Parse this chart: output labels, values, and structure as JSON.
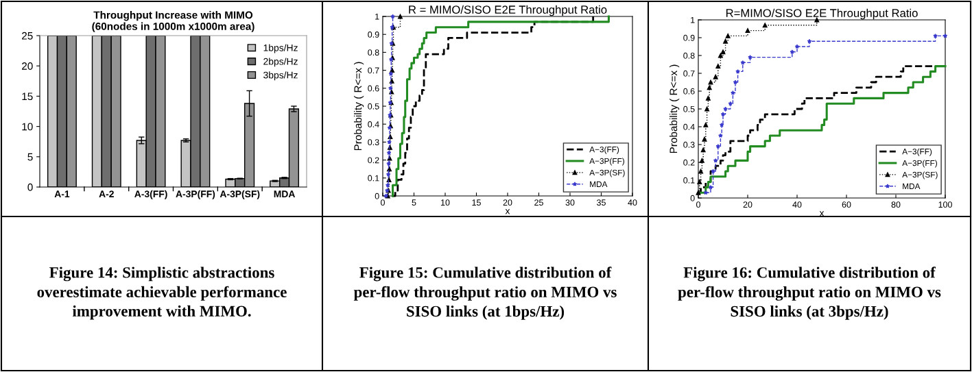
{
  "chart_data": [
    {
      "type": "bar",
      "title": "Throughput Increase with MIMO",
      "subtitle": "(60nodes in 1000m x1000m area)",
      "categories": [
        "A-1",
        "A-2",
        "A-3(FF)",
        "A-3P(FF)",
        "A-3P(SF)",
        "MDA"
      ],
      "series": [
        {
          "name": "1bps/Hz",
          "color": "#c4c4c4",
          "values": [
            25,
            25,
            7.7,
            7.7,
            1.3,
            1.0
          ],
          "errors": [
            null,
            null,
            0.55,
            0.25,
            0.1,
            0.1
          ]
        },
        {
          "name": "2bps/Hz",
          "color": "#6e6e6e",
          "values": [
            25,
            25,
            25,
            25,
            1.4,
            1.5
          ],
          "errors": [
            null,
            null,
            null,
            null,
            0.05,
            0.1
          ]
        },
        {
          "name": "3bps/Hz",
          "color": "#939393",
          "values": [
            25,
            25,
            25,
            25,
            13.8,
            12.9
          ],
          "errors": [
            null,
            null,
            null,
            null,
            2.1,
            0.45
          ]
        }
      ],
      "ylim": [
        0,
        25
      ],
      "yticks": [
        0,
        5,
        10,
        15,
        20,
        25
      ],
      "legend": "top right",
      "grid": false,
      "annotations": [
        "Figure 14: Simplistic abstractions overestimate achievable performance improvement with MIMO."
      ]
    },
    {
      "type": "step",
      "title": "R = MIMO/SISO E2E Throughput Ratio",
      "xlabel": "x",
      "ylabel": "Probability ( R<=x )",
      "series": [
        {
          "name": "A−3(FF)",
          "color": "#000000",
          "line_style": "dashed",
          "marker": "none",
          "x": [
            1.5,
            2.0,
            2.4,
            3.0,
            3.3,
            3.6,
            3.9,
            4.2,
            4.5,
            4.8,
            5.3,
            5.9,
            6.3,
            6.6,
            6.9,
            9.8,
            10.5,
            13.5,
            23.8,
            24.3,
            33.7
          ],
          "values": [
            0,
            0.03,
            0.09,
            0.12,
            0.18,
            0.24,
            0.32,
            0.38,
            0.44,
            0.5,
            0.53,
            0.56,
            0.59,
            0.71,
            0.79,
            0.82,
            0.88,
            0.91,
            0.94,
            0.97,
            1.0
          ]
        },
        {
          "name": "A−3P(FF)",
          "color": "#228b22",
          "line_style": "solid",
          "marker": "none",
          "x": [
            1.6,
            1.6,
            2.2,
            2.5,
            2.8,
            3.1,
            3.4,
            3.6,
            3.9,
            4.3,
            4.6,
            5.0,
            5.6,
            5.9,
            6.3,
            6.6,
            7.0,
            8.5,
            13.7,
            36.2
          ],
          "values": [
            0,
            0.06,
            0.15,
            0.21,
            0.29,
            0.35,
            0.44,
            0.53,
            0.65,
            0.71,
            0.74,
            0.77,
            0.79,
            0.82,
            0.85,
            0.88,
            0.91,
            0.94,
            0.97,
            1.0
          ]
        },
        {
          "name": "A−3P(SF)",
          "color": "#000000",
          "line_style": "dotted",
          "marker": "triangle",
          "x": [
            0.8,
            0.9,
            1.0,
            1.05,
            1.1,
            1.15,
            1.2,
            1.25,
            1.3,
            1.35,
            1.4,
            1.45,
            1.5,
            1.55,
            1.6,
            1.7,
            2.8
          ],
          "values": [
            0,
            0.03,
            0.09,
            0.15,
            0.21,
            0.27,
            0.33,
            0.39,
            0.45,
            0.52,
            0.58,
            0.64,
            0.7,
            0.77,
            0.85,
            0.94,
            1.0
          ]
        },
        {
          "name": "MDA",
          "color": "#3a3acc",
          "line_style": "dashed",
          "marker": "star",
          "x": [
            0.5,
            0.7,
            0.8,
            0.9,
            0.95,
            1.0,
            1.05,
            1.1,
            1.15,
            1.2,
            1.25,
            1.3,
            1.35,
            1.4,
            1.5,
            1.6
          ],
          "values": [
            0,
            0.03,
            0.06,
            0.12,
            0.18,
            0.24,
            0.3,
            0.38,
            0.45,
            0.52,
            0.6,
            0.68,
            0.76,
            0.85,
            0.94,
            1.0
          ]
        }
      ],
      "xlim": [
        0,
        40
      ],
      "xticks": [
        0,
        5,
        10,
        15,
        20,
        25,
        30,
        35,
        40
      ],
      "ylim": [
        0,
        1
      ],
      "yticks": [
        0,
        0.1,
        0.2,
        0.3,
        0.4,
        0.5,
        0.6,
        0.7,
        0.8,
        0.9,
        1
      ],
      "legend": "bottom right",
      "grid": false,
      "annotations": [
        "Figure 15: Cumulative distribution of per-flow throughput ratio on MIMO vs SISO links (at 1bps/Hz)"
      ]
    },
    {
      "type": "step",
      "title": "R=MIMO/SISO E2E Throughput Ratio",
      "xlabel": "x",
      "ylabel": "Probability ( R<=x )",
      "series": [
        {
          "name": "A−3(FF)",
          "color": "#000000",
          "line_style": "dashed",
          "marker": "none",
          "x": [
            0,
            1,
            3,
            5,
            7,
            9,
            10,
            11,
            13,
            20,
            21,
            24,
            25,
            27,
            39,
            42,
            43,
            55,
            64,
            70,
            72,
            82,
            83,
            100
          ],
          "values": [
            0.03,
            0.06,
            0.09,
            0.15,
            0.18,
            0.21,
            0.24,
            0.26,
            0.32,
            0.35,
            0.38,
            0.41,
            0.44,
            0.47,
            0.5,
            0.53,
            0.56,
            0.59,
            0.62,
            0.65,
            0.68,
            0.71,
            0.74,
            0.74
          ]
        },
        {
          "name": "A−3P(FF)",
          "color": "#228b22",
          "line_style": "solid",
          "marker": "none",
          "x": [
            1,
            3,
            4,
            5,
            11,
            12,
            15,
            20,
            21,
            27,
            29,
            33,
            50,
            51,
            52,
            63,
            75,
            85,
            87,
            91,
            94,
            96,
            100
          ],
          "values": [
            0.03,
            0.06,
            0.09,
            0.12,
            0.15,
            0.18,
            0.21,
            0.26,
            0.29,
            0.32,
            0.35,
            0.38,
            0.41,
            0.44,
            0.53,
            0.56,
            0.59,
            0.62,
            0.65,
            0.68,
            0.71,
            0.74,
            0.74
          ]
        },
        {
          "name": "A−3P(SF)",
          "color": "#000000",
          "line_style": "dotted",
          "marker": "triangle",
          "x": [
            0,
            0.5,
            1,
            1.5,
            2,
            2.5,
            3,
            3.5,
            4,
            4.5,
            5,
            7,
            8,
            9,
            10,
            11,
            12,
            20,
            27,
            48
          ],
          "values": [
            0.03,
            0.09,
            0.15,
            0.21,
            0.27,
            0.33,
            0.41,
            0.5,
            0.56,
            0.62,
            0.65,
            0.68,
            0.74,
            0.8,
            0.82,
            0.88,
            0.91,
            0.94,
            0.97,
            1.0
          ]
        },
        {
          "name": "MDA",
          "color": "#3a3acc",
          "line_style": "dashed",
          "marker": "star",
          "x": [
            3,
            5,
            6,
            7,
            8,
            9,
            9.5,
            10,
            11,
            13,
            14,
            15,
            16,
            18,
            21,
            38,
            40,
            45,
            96,
            100
          ],
          "values": [
            0.03,
            0.06,
            0.15,
            0.21,
            0.29,
            0.35,
            0.41,
            0.47,
            0.5,
            0.53,
            0.59,
            0.65,
            0.71,
            0.76,
            0.79,
            0.82,
            0.85,
            0.88,
            0.91,
            0.91
          ]
        }
      ],
      "xlim": [
        0,
        100
      ],
      "xticks": [
        0,
        20,
        40,
        60,
        80,
        100
      ],
      "ylim": [
        0,
        1
      ],
      "yticks": [
        0,
        0.1,
        0.2,
        0.3,
        0.4,
        0.5,
        0.6,
        0.7,
        0.8,
        0.9,
        1
      ],
      "legend": "bottom right",
      "grid": false,
      "annotations": [
        "Figure 16: Cumulative distribution of per-flow throughput ratio on MIMO vs SISO links (at 3bps/Hz)"
      ]
    }
  ]
}
